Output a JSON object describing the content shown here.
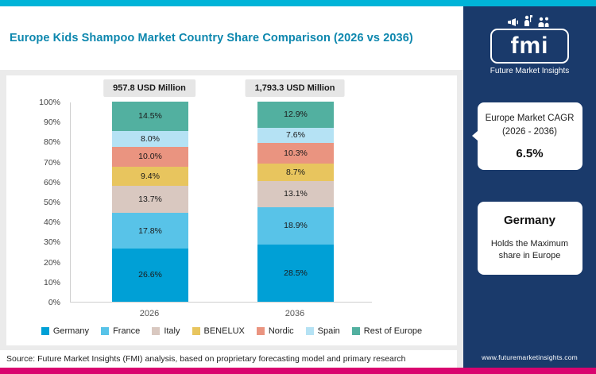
{
  "colors": {
    "top_bar": "#00b4d8",
    "bottom_bar": "#d9046f",
    "panel_bg": "#1a3a6b",
    "title": "#0d87ae"
  },
  "header": {
    "title": "Europe Kids Shampoo Market Country Share Comparison (2026 vs 2036)"
  },
  "brand": {
    "logo_text": "fmi",
    "brand_name": "Future Market Insights",
    "website": "www.futuremarketinsights.com"
  },
  "sidebar": {
    "cagr_card": {
      "line1": "Europe Market CAGR",
      "line2": "(2026 - 2036)",
      "value": "6.5%"
    },
    "highlight_card": {
      "title": "Germany",
      "subtitle": "Holds the Maximum share in Europe"
    }
  },
  "chart_data": {
    "type": "bar",
    "stacked": true,
    "categories": [
      "2026",
      "2036"
    ],
    "totals": [
      "957.8 USD Million",
      "1,793.3 USD Million"
    ],
    "series": [
      {
        "name": "Germany",
        "color": "#00a0d6",
        "values": [
          26.6,
          28.5
        ]
      },
      {
        "name": "France",
        "color": "#58c3e8",
        "values": [
          17.8,
          18.9
        ]
      },
      {
        "name": "Italy",
        "color": "#d9c8c0",
        "values": [
          13.7,
          13.1
        ]
      },
      {
        "name": "BENELUX",
        "color": "#e8c55e",
        "values": [
          9.4,
          8.7
        ]
      },
      {
        "name": "Nordic",
        "color": "#ea9480",
        "values": [
          10.0,
          10.3
        ]
      },
      {
        "name": "Spain",
        "color": "#b5e2f4",
        "values": [
          8.0,
          7.6
        ]
      },
      {
        "name": "Rest of Europe",
        "color": "#52b0a0",
        "values": [
          14.5,
          12.9
        ]
      }
    ],
    "y_ticks": [
      "0%",
      "10%",
      "20%",
      "30%",
      "40%",
      "50%",
      "60%",
      "70%",
      "80%",
      "90%",
      "100%"
    ],
    "ylim": [
      0,
      100
    ],
    "xlabel": "",
    "ylabel": "",
    "grid": false,
    "legend_position": "bottom"
  },
  "footer": {
    "source": "Source: Future Market Insights (FMI) analysis, based on proprietary forecasting model and primary research"
  }
}
